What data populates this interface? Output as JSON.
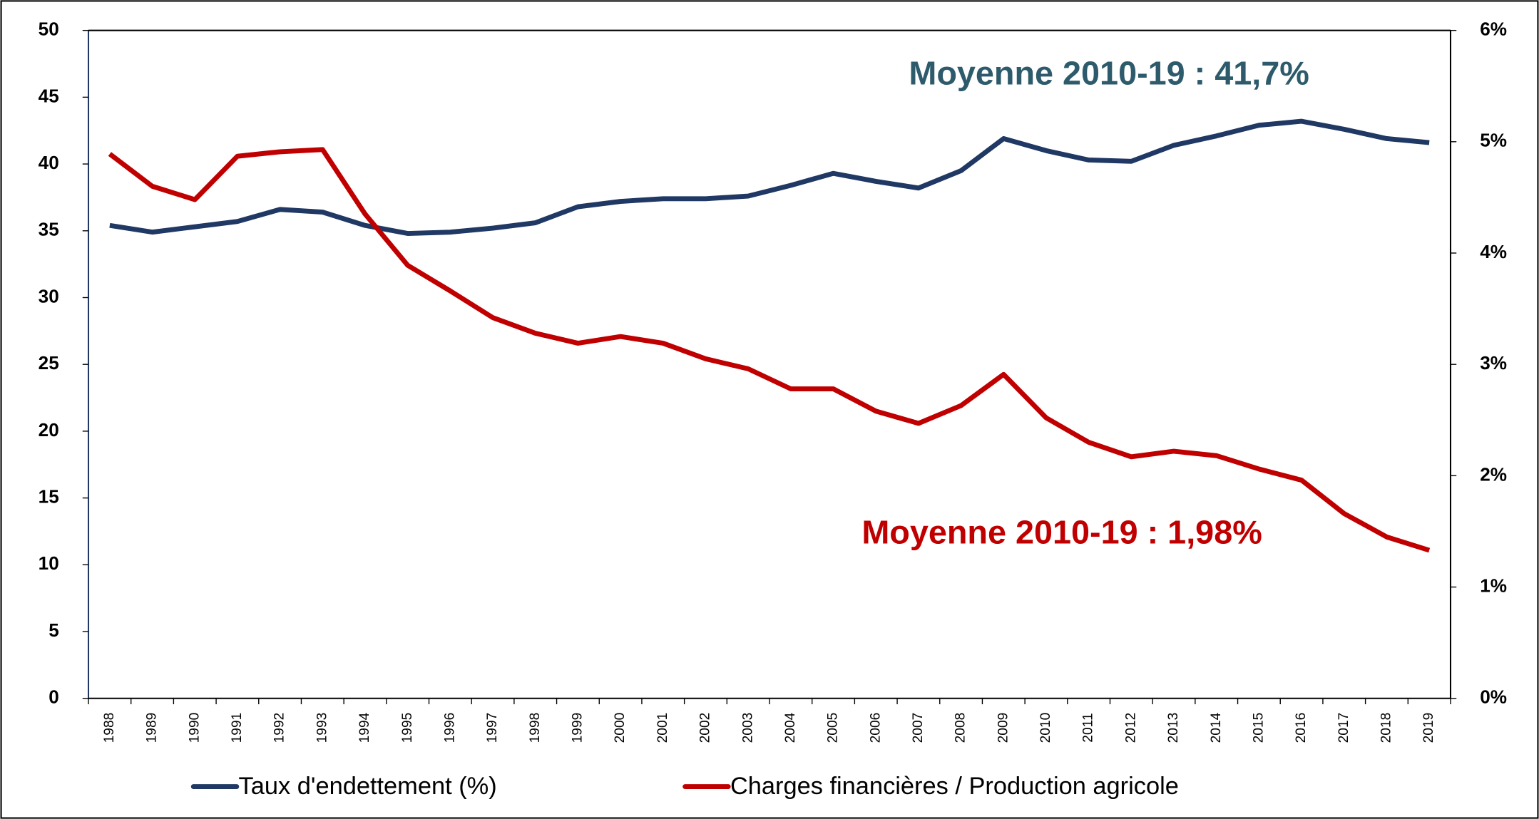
{
  "chart_data": {
    "type": "line",
    "categories": [
      "1988",
      "1989",
      "1990",
      "1991",
      "1992",
      "1993",
      "1994",
      "1995",
      "1996",
      "1997",
      "1998",
      "1999",
      "2000",
      "2001",
      "2002",
      "2003",
      "2004",
      "2005",
      "2006",
      "2007",
      "2008",
      "2009",
      "2010",
      "2011",
      "2012",
      "2013",
      "2014",
      "2015",
      "2016",
      "2017",
      "2018",
      "2019"
    ],
    "series": [
      {
        "name": "Taux d'endettement (%)",
        "color": "#1f3864",
        "values": [
          35.4,
          34.9,
          35.3,
          35.7,
          36.6,
          36.4,
          35.4,
          34.8,
          34.9,
          35.2,
          35.6,
          36.8,
          37.2,
          37.4,
          37.4,
          37.6,
          38.4,
          39.3,
          38.7,
          38.2,
          39.5,
          41.9,
          41.0,
          40.3,
          40.2,
          41.4,
          42.1,
          42.9,
          43.2,
          42.6,
          41.9,
          41.6
        ]
      },
      {
        "name": "Charges financières / Production agricole",
        "color": "#c00000",
        "axis": "y2",
        "values": [
          4.89,
          4.6,
          4.48,
          4.87,
          4.91,
          4.93,
          4.35,
          3.89,
          3.66,
          3.42,
          3.28,
          3.19,
          3.25,
          3.19,
          3.05,
          2.96,
          2.78,
          2.78,
          2.58,
          2.47,
          2.63,
          2.91,
          2.52,
          2.3,
          2.17,
          2.22,
          2.18,
          2.06,
          1.96,
          1.66,
          1.45,
          1.33
        ]
      }
    ],
    "ylim": [
      0,
      50
    ],
    "yticks": [
      0,
      5,
      10,
      15,
      20,
      25,
      30,
      35,
      40,
      45,
      50
    ],
    "y2lim": [
      0,
      6
    ],
    "y2ticks": [
      {
        "value": 0,
        "label": "0%"
      },
      {
        "value": 1,
        "label": "1%"
      },
      {
        "value": 2,
        "label": "2%"
      },
      {
        "value": 3,
        "label": "3%"
      },
      {
        "value": 4,
        "label": "4%"
      },
      {
        "value": 5,
        "label": "5%"
      },
      {
        "value": 6,
        "label": "6%"
      }
    ],
    "annotations": [
      {
        "text": "Moyenne 2010-19 : 41,7%",
        "color": "#2e5b6b"
      },
      {
        "text": "Moyenne 2010-19 : 1,98%",
        "color": "#c00000"
      }
    ],
    "legend": "bottom"
  }
}
